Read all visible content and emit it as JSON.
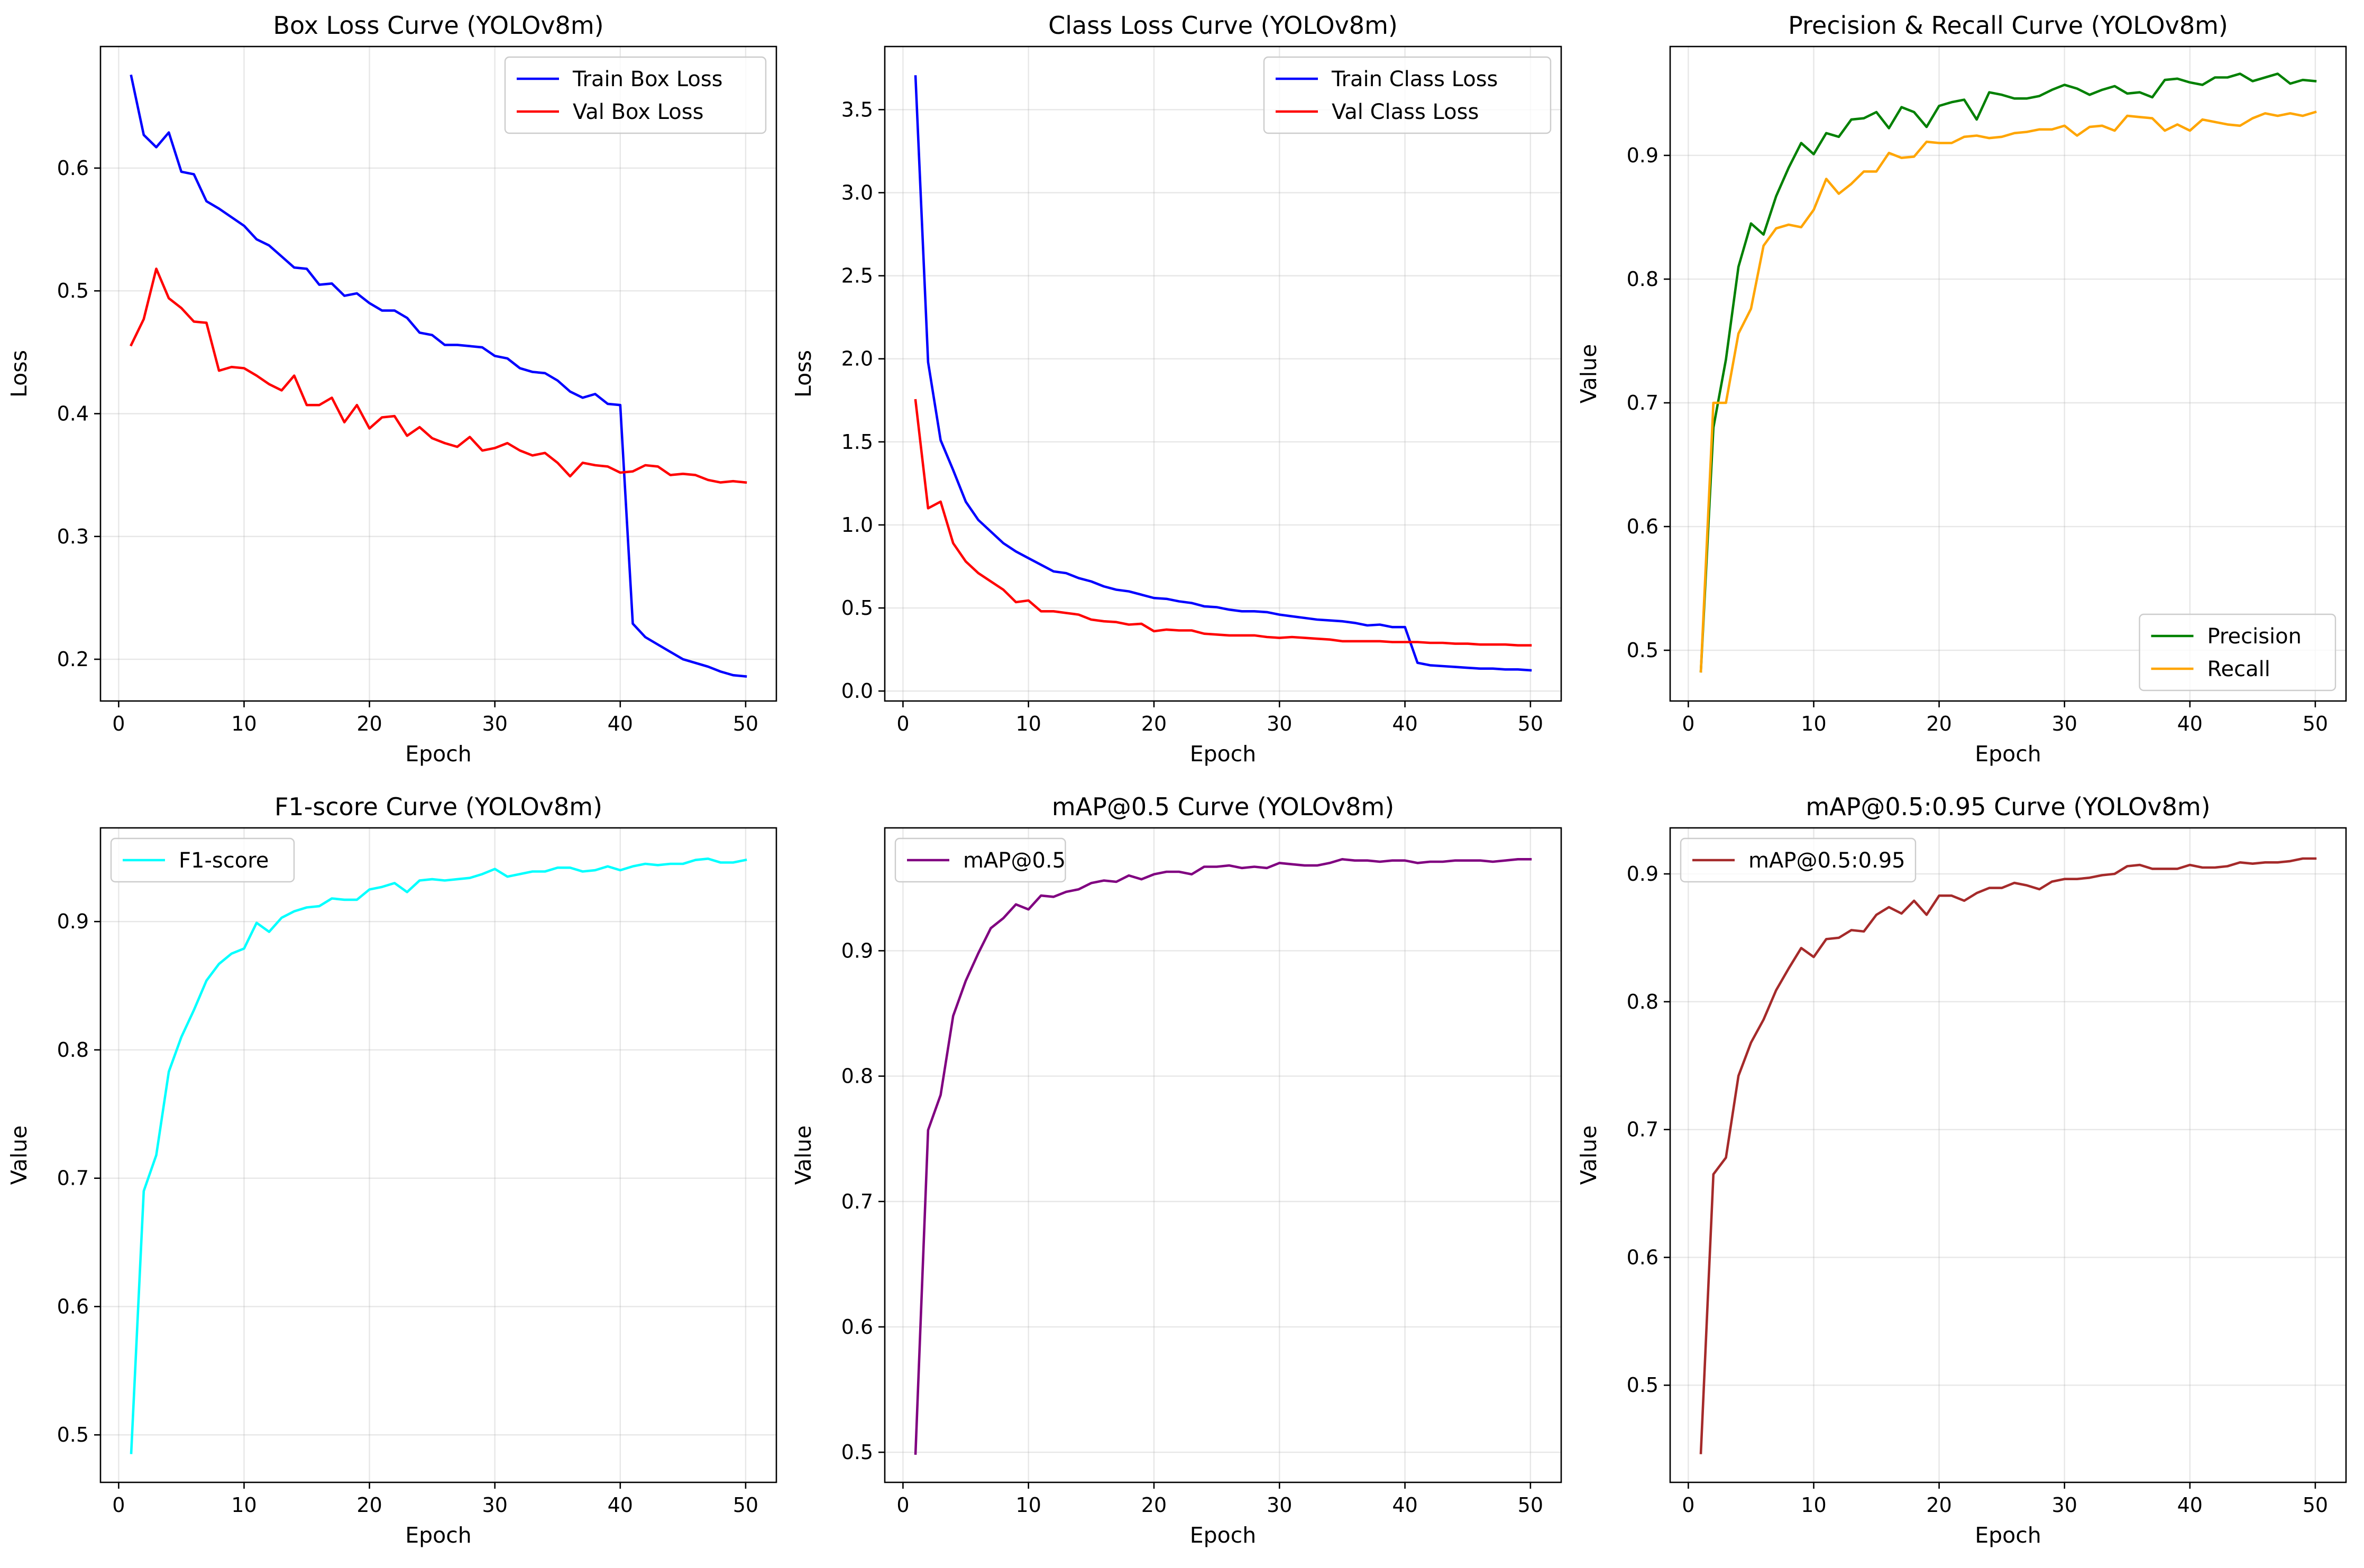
{
  "chart_data": [
    {
      "type": "line",
      "title": "Box Loss Curve (YOLOv8m)",
      "xlabel": "Epoch",
      "ylabel": "Loss",
      "xlim": [
        -1.45,
        52.45
      ],
      "ylim": [
        0.166,
        0.699
      ],
      "xticks": [
        0,
        10,
        20,
        30,
        40,
        50
      ],
      "yticks": [
        0.2,
        0.3,
        0.4,
        0.5,
        0.6
      ],
      "grid": true,
      "legend": "top-right",
      "x": [
        1,
        2,
        3,
        4,
        5,
        6,
        7,
        8,
        9,
        10,
        11,
        12,
        13,
        14,
        15,
        16,
        17,
        18,
        19,
        20,
        21,
        22,
        23,
        24,
        25,
        26,
        27,
        28,
        29,
        30,
        31,
        32,
        33,
        34,
        35,
        36,
        37,
        38,
        39,
        40,
        41,
        42,
        43,
        44,
        45,
        46,
        47,
        48,
        49,
        50
      ],
      "series": [
        {
          "name": "Train Box Loss",
          "color": "#0000ff",
          "values": [
            0.675,
            0.627,
            0.617,
            0.629,
            0.597,
            0.595,
            0.573,
            0.567,
            0.56,
            0.553,
            0.542,
            0.537,
            0.528,
            0.519,
            0.518,
            0.505,
            0.506,
            0.496,
            0.498,
            0.49,
            0.484,
            0.484,
            0.478,
            0.466,
            0.464,
            0.456,
            0.456,
            0.455,
            0.454,
            0.447,
            0.445,
            0.437,
            0.434,
            0.433,
            0.427,
            0.418,
            0.413,
            0.416,
            0.408,
            0.407,
            0.229,
            0.218,
            0.212,
            0.206,
            0.2,
            0.197,
            0.194,
            0.19,
            0.187,
            0.186
          ]
        },
        {
          "name": "Val Box Loss",
          "color": "#ff0000",
          "values": [
            0.456,
            0.477,
            0.518,
            0.494,
            0.486,
            0.475,
            0.474,
            0.435,
            0.438,
            0.437,
            0.431,
            0.424,
            0.419,
            0.431,
            0.407,
            0.407,
            0.413,
            0.393,
            0.407,
            0.388,
            0.397,
            0.398,
            0.382,
            0.389,
            0.38,
            0.376,
            0.373,
            0.381,
            0.37,
            0.372,
            0.376,
            0.37,
            0.366,
            0.368,
            0.36,
            0.349,
            0.36,
            0.358,
            0.357,
            0.352,
            0.353,
            0.358,
            0.357,
            0.35,
            0.351,
            0.35,
            0.346,
            0.344,
            0.345,
            0.344
          ]
        }
      ]
    },
    {
      "type": "line",
      "title": "Class Loss Curve (YOLOv8m)",
      "xlabel": "Epoch",
      "ylabel": "Loss",
      "xlim": [
        -1.45,
        52.45
      ],
      "ylim": [
        -0.06,
        3.88
      ],
      "xticks": [
        0,
        10,
        20,
        30,
        40,
        50
      ],
      "yticks": [
        0.0,
        0.5,
        1.0,
        1.5,
        2.0,
        2.5,
        3.0,
        3.5
      ],
      "ytick_labels": [
        "0.0",
        "0.5",
        "1.0",
        "1.5",
        "2.0",
        "2.5",
        "3.0",
        "3.5"
      ],
      "grid": true,
      "legend": "top-right",
      "x": [
        1,
        2,
        3,
        4,
        5,
        6,
        7,
        8,
        9,
        10,
        11,
        12,
        13,
        14,
        15,
        16,
        17,
        18,
        19,
        20,
        21,
        22,
        23,
        24,
        25,
        26,
        27,
        28,
        29,
        30,
        31,
        32,
        33,
        34,
        35,
        36,
        37,
        38,
        39,
        40,
        41,
        42,
        43,
        44,
        45,
        46,
        47,
        48,
        49,
        50
      ],
      "series": [
        {
          "name": "Train Class Loss",
          "color": "#0000ff",
          "values": [
            3.7,
            1.98,
            1.51,
            1.33,
            1.14,
            1.03,
            0.96,
            0.89,
            0.84,
            0.8,
            0.76,
            0.72,
            0.71,
            0.68,
            0.66,
            0.63,
            0.61,
            0.6,
            0.58,
            0.56,
            0.555,
            0.54,
            0.53,
            0.51,
            0.505,
            0.49,
            0.48,
            0.48,
            0.475,
            0.46,
            0.45,
            0.44,
            0.43,
            0.425,
            0.42,
            0.41,
            0.395,
            0.4,
            0.385,
            0.385,
            0.17,
            0.155,
            0.15,
            0.145,
            0.14,
            0.135,
            0.135,
            0.13,
            0.13,
            0.125
          ]
        },
        {
          "name": "Val Class Loss",
          "color": "#ff0000",
          "values": [
            1.75,
            1.1,
            1.14,
            0.89,
            0.78,
            0.71,
            0.66,
            0.61,
            0.535,
            0.545,
            0.48,
            0.48,
            0.47,
            0.46,
            0.43,
            0.42,
            0.415,
            0.4,
            0.405,
            0.36,
            0.37,
            0.365,
            0.365,
            0.345,
            0.34,
            0.335,
            0.335,
            0.335,
            0.325,
            0.32,
            0.325,
            0.32,
            0.315,
            0.31,
            0.3,
            0.3,
            0.3,
            0.3,
            0.295,
            0.295,
            0.295,
            0.29,
            0.29,
            0.285,
            0.285,
            0.28,
            0.28,
            0.28,
            0.275,
            0.275
          ]
        }
      ]
    },
    {
      "type": "line",
      "title": "Precision & Recall Curve (YOLOv8m)",
      "xlabel": "Epoch",
      "ylabel": "Value",
      "xlim": [
        -1.45,
        52.45
      ],
      "ylim": [
        0.459,
        0.988
      ],
      "xticks": [
        0,
        10,
        20,
        30,
        40,
        50
      ],
      "yticks": [
        0.5,
        0.6,
        0.7,
        0.8,
        0.9
      ],
      "grid": true,
      "legend": "lower-right",
      "x": [
        1,
        2,
        3,
        4,
        5,
        6,
        7,
        8,
        9,
        10,
        11,
        12,
        13,
        14,
        15,
        16,
        17,
        18,
        19,
        20,
        21,
        22,
        23,
        24,
        25,
        26,
        27,
        28,
        29,
        30,
        31,
        32,
        33,
        34,
        35,
        36,
        37,
        38,
        39,
        40,
        41,
        42,
        43,
        44,
        45,
        46,
        47,
        48,
        49,
        50
      ],
      "series": [
        {
          "name": "Precision",
          "color": "#008000",
          "values": [
            0.483,
            0.68,
            0.735,
            0.81,
            0.845,
            0.836,
            0.867,
            0.89,
            0.91,
            0.901,
            0.918,
            0.915,
            0.929,
            0.93,
            0.935,
            0.922,
            0.939,
            0.935,
            0.923,
            0.94,
            0.943,
            0.945,
            0.929,
            0.951,
            0.949,
            0.946,
            0.946,
            0.948,
            0.953,
            0.957,
            0.954,
            0.949,
            0.953,
            0.956,
            0.95,
            0.951,
            0.947,
            0.961,
            0.962,
            0.959,
            0.957,
            0.963,
            0.963,
            0.966,
            0.96,
            0.963,
            0.966,
            0.958,
            0.961,
            0.96
          ]
        },
        {
          "name": "Recall",
          "color": "#ffa500",
          "values": [
            0.483,
            0.7,
            0.7,
            0.756,
            0.776,
            0.827,
            0.841,
            0.844,
            0.842,
            0.856,
            0.881,
            0.869,
            0.877,
            0.887,
            0.887,
            0.902,
            0.898,
            0.899,
            0.911,
            0.91,
            0.91,
            0.915,
            0.916,
            0.914,
            0.915,
            0.918,
            0.919,
            0.921,
            0.921,
            0.924,
            0.916,
            0.923,
            0.924,
            0.92,
            0.932,
            0.931,
            0.93,
            0.92,
            0.925,
            0.92,
            0.929,
            0.927,
            0.925,
            0.924,
            0.93,
            0.934,
            0.932,
            0.934,
            0.932,
            0.935
          ]
        }
      ]
    },
    {
      "type": "line",
      "title": "F1-score Curve (YOLOv8m)",
      "xlabel": "Epoch",
      "ylabel": "Value",
      "xlim": [
        -1.45,
        52.45
      ],
      "ylim": [
        0.463,
        0.973
      ],
      "xticks": [
        0,
        10,
        20,
        30,
        40,
        50
      ],
      "yticks": [
        0.5,
        0.6,
        0.7,
        0.8,
        0.9
      ],
      "grid": true,
      "legend": "top-left",
      "x": [
        1,
        2,
        3,
        4,
        5,
        6,
        7,
        8,
        9,
        10,
        11,
        12,
        13,
        14,
        15,
        16,
        17,
        18,
        19,
        20,
        21,
        22,
        23,
        24,
        25,
        26,
        27,
        28,
        29,
        30,
        31,
        32,
        33,
        34,
        35,
        36,
        37,
        38,
        39,
        40,
        41,
        42,
        43,
        44,
        45,
        46,
        47,
        48,
        49,
        50
      ],
      "series": [
        {
          "name": "F1-score",
          "color": "#00ffff",
          "values": [
            0.486,
            0.69,
            0.718,
            0.783,
            0.81,
            0.831,
            0.854,
            0.867,
            0.875,
            0.879,
            0.899,
            0.892,
            0.903,
            0.908,
            0.911,
            0.912,
            0.918,
            0.917,
            0.917,
            0.925,
            0.927,
            0.93,
            0.923,
            0.932,
            0.933,
            0.932,
            0.933,
            0.934,
            0.937,
            0.941,
            0.935,
            0.937,
            0.939,
            0.939,
            0.942,
            0.942,
            0.939,
            0.94,
            0.943,
            0.94,
            0.943,
            0.945,
            0.944,
            0.945,
            0.945,
            0.948,
            0.949,
            0.946,
            0.946,
            0.948
          ]
        }
      ]
    },
    {
      "type": "line",
      "title": "mAP@0.5 Curve (YOLOv8m)",
      "xlabel": "Epoch",
      "ylabel": "Value",
      "xlim": [
        -1.45,
        52.45
      ],
      "ylim": [
        0.476,
        0.998
      ],
      "xticks": [
        0,
        10,
        20,
        30,
        40,
        50
      ],
      "yticks": [
        0.5,
        0.6,
        0.7,
        0.8,
        0.9
      ],
      "grid": true,
      "legend": "top-left",
      "x": [
        1,
        2,
        3,
        4,
        5,
        6,
        7,
        8,
        9,
        10,
        11,
        12,
        13,
        14,
        15,
        16,
        17,
        18,
        19,
        20,
        21,
        22,
        23,
        24,
        25,
        26,
        27,
        28,
        29,
        30,
        31,
        32,
        33,
        34,
        35,
        36,
        37,
        38,
        39,
        40,
        41,
        42,
        43,
        44,
        45,
        46,
        47,
        48,
        49,
        50
      ],
      "series": [
        {
          "name": "mAP@0.5",
          "color": "#800080",
          "values": [
            0.499,
            0.757,
            0.785,
            0.848,
            0.876,
            0.898,
            0.918,
            0.926,
            0.937,
            0.933,
            0.944,
            0.943,
            0.947,
            0.949,
            0.954,
            0.956,
            0.955,
            0.96,
            0.957,
            0.961,
            0.963,
            0.963,
            0.961,
            0.967,
            0.967,
            0.968,
            0.966,
            0.967,
            0.966,
            0.97,
            0.969,
            0.968,
            0.968,
            0.97,
            0.973,
            0.972,
            0.972,
            0.971,
            0.972,
            0.972,
            0.97,
            0.971,
            0.971,
            0.972,
            0.972,
            0.972,
            0.971,
            0.972,
            0.973,
            0.973
          ]
        }
      ]
    },
    {
      "type": "line",
      "title": "mAP@0.5:0.95 Curve (YOLOv8m)",
      "xlabel": "Epoch",
      "ylabel": "Value",
      "xlim": [
        -1.45,
        52.45
      ],
      "ylim": [
        0.424,
        0.936
      ],
      "xticks": [
        0,
        10,
        20,
        30,
        40,
        50
      ],
      "yticks": [
        0.5,
        0.6,
        0.7,
        0.8,
        0.9
      ],
      "grid": true,
      "legend": "top-left",
      "x": [
        1,
        2,
        3,
        4,
        5,
        6,
        7,
        8,
        9,
        10,
        11,
        12,
        13,
        14,
        15,
        16,
        17,
        18,
        19,
        20,
        21,
        22,
        23,
        24,
        25,
        26,
        27,
        28,
        29,
        30,
        31,
        32,
        33,
        34,
        35,
        36,
        37,
        38,
        39,
        40,
        41,
        42,
        43,
        44,
        45,
        46,
        47,
        48,
        49,
        50
      ],
      "series": [
        {
          "name": "mAP@0.5:0.95",
          "color": "#a52a2a",
          "values": [
            0.447,
            0.665,
            0.678,
            0.742,
            0.768,
            0.786,
            0.809,
            0.826,
            0.842,
            0.835,
            0.849,
            0.85,
            0.856,
            0.855,
            0.868,
            0.874,
            0.869,
            0.879,
            0.868,
            0.883,
            0.883,
            0.879,
            0.885,
            0.889,
            0.889,
            0.893,
            0.891,
            0.888,
            0.894,
            0.896,
            0.896,
            0.897,
            0.899,
            0.9,
            0.906,
            0.907,
            0.904,
            0.904,
            0.904,
            0.907,
            0.905,
            0.905,
            0.906,
            0.909,
            0.908,
            0.909,
            0.909,
            0.91,
            0.912,
            0.912
          ]
        }
      ]
    }
  ]
}
